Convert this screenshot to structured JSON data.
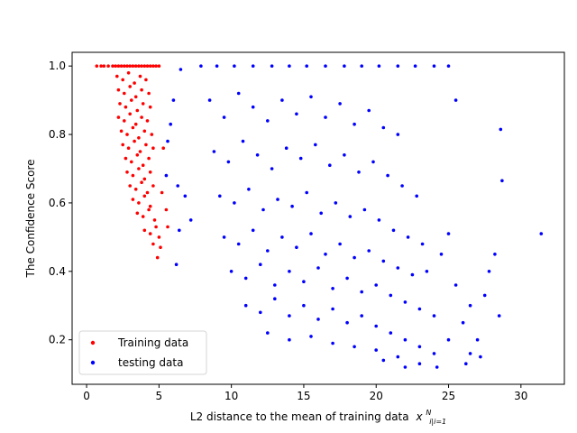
{
  "chart_data": {
    "type": "scatter",
    "title": "",
    "xlabel": "L2 distance to the mean of training data",
    "xlabel_math": "x",
    "xlabel_sub": "i|i=1",
    "xlabel_sup": "N",
    "ylabel": "The Confidence Score",
    "xlim": [
      -1,
      33
    ],
    "ylim": [
      0.07,
      1.04
    ],
    "xticks": [
      0,
      5,
      10,
      15,
      20,
      25,
      30
    ],
    "yticks": [
      0.2,
      0.4,
      0.6,
      0.8,
      1.0
    ],
    "ytick_labels": [
      "0.2",
      "0.4",
      "0.6",
      "0.8",
      "1.0"
    ],
    "grid": false,
    "legend_position": "lower-left",
    "series": [
      {
        "name": "Training data",
        "color": "#ff0000",
        "points": [
          [
            0.7,
            1.0
          ],
          [
            1.0,
            1.0
          ],
          [
            1.2,
            1.0
          ],
          [
            1.5,
            1.0
          ],
          [
            1.8,
            1.0
          ],
          [
            2.0,
            1.0
          ],
          [
            2.2,
            1.0
          ],
          [
            2.4,
            1.0
          ],
          [
            2.6,
            1.0
          ],
          [
            2.8,
            1.0
          ],
          [
            3.0,
            1.0
          ],
          [
            3.2,
            1.0
          ],
          [
            3.4,
            1.0
          ],
          [
            3.6,
            1.0
          ],
          [
            3.8,
            1.0
          ],
          [
            4.0,
            1.0
          ],
          [
            4.2,
            1.0
          ],
          [
            4.4,
            1.0
          ],
          [
            4.6,
            1.0
          ],
          [
            4.8,
            1.0
          ],
          [
            5.0,
            1.0
          ],
          [
            2.1,
            0.97
          ],
          [
            2.5,
            0.96
          ],
          [
            2.9,
            0.98
          ],
          [
            3.3,
            0.95
          ],
          [
            3.7,
            0.97
          ],
          [
            4.1,
            0.96
          ],
          [
            2.2,
            0.93
          ],
          [
            2.6,
            0.92
          ],
          [
            3.0,
            0.94
          ],
          [
            3.4,
            0.91
          ],
          [
            3.8,
            0.93
          ],
          [
            4.3,
            0.92
          ],
          [
            2.3,
            0.89
          ],
          [
            2.7,
            0.88
          ],
          [
            3.1,
            0.9
          ],
          [
            3.5,
            0.87
          ],
          [
            3.9,
            0.89
          ],
          [
            4.4,
            0.88
          ],
          [
            2.2,
            0.85
          ],
          [
            2.6,
            0.84
          ],
          [
            3.0,
            0.86
          ],
          [
            3.4,
            0.83
          ],
          [
            3.8,
            0.85
          ],
          [
            4.2,
            0.84
          ],
          [
            2.4,
            0.81
          ],
          [
            2.8,
            0.8
          ],
          [
            3.2,
            0.82
          ],
          [
            3.6,
            0.79
          ],
          [
            4.0,
            0.81
          ],
          [
            4.5,
            0.8
          ],
          [
            2.5,
            0.77
          ],
          [
            2.9,
            0.76
          ],
          [
            3.3,
            0.78
          ],
          [
            3.7,
            0.75
          ],
          [
            4.1,
            0.77
          ],
          [
            4.6,
            0.76
          ],
          [
            2.7,
            0.73
          ],
          [
            3.1,
            0.72
          ],
          [
            3.5,
            0.74
          ],
          [
            3.9,
            0.71
          ],
          [
            4.3,
            0.73
          ],
          [
            2.8,
            0.69
          ],
          [
            3.2,
            0.68
          ],
          [
            3.6,
            0.7
          ],
          [
            4.0,
            0.67
          ],
          [
            4.4,
            0.69
          ],
          [
            3.0,
            0.65
          ],
          [
            3.4,
            0.64
          ],
          [
            3.8,
            0.66
          ],
          [
            4.2,
            0.63
          ],
          [
            4.6,
            0.65
          ],
          [
            3.2,
            0.61
          ],
          [
            3.6,
            0.6
          ],
          [
            4.0,
            0.62
          ],
          [
            4.4,
            0.59
          ],
          [
            3.5,
            0.57
          ],
          [
            3.9,
            0.56
          ],
          [
            4.3,
            0.58
          ],
          [
            4.7,
            0.55
          ],
          [
            4.0,
            0.52
          ],
          [
            4.4,
            0.51
          ],
          [
            4.8,
            0.53
          ],
          [
            4.6,
            0.48
          ],
          [
            5.0,
            0.5
          ],
          [
            4.9,
            0.44
          ],
          [
            5.1,
            0.47
          ],
          [
            5.3,
            0.76
          ],
          [
            5.2,
            0.63
          ],
          [
            5.5,
            0.58
          ],
          [
            5.6,
            0.53
          ]
        ]
      },
      {
        "name": "testing data",
        "color": "#0000ff",
        "points": [
          [
            7.9,
            1.0
          ],
          [
            9.0,
            1.0
          ],
          [
            10.2,
            1.0
          ],
          [
            11.5,
            1.0
          ],
          [
            12.8,
            1.0
          ],
          [
            14.0,
            1.0
          ],
          [
            15.2,
            1.0
          ],
          [
            16.5,
            1.0
          ],
          [
            17.8,
            1.0
          ],
          [
            19.0,
            1.0
          ],
          [
            20.2,
            1.0
          ],
          [
            21.5,
            1.0
          ],
          [
            22.7,
            1.0
          ],
          [
            24.0,
            1.0
          ],
          [
            25.0,
            1.0
          ],
          [
            6.5,
            0.99
          ],
          [
            6.0,
            0.9
          ],
          [
            5.8,
            0.83
          ],
          [
            5.6,
            0.78
          ],
          [
            5.5,
            0.68
          ],
          [
            6.3,
            0.65
          ],
          [
            6.8,
            0.62
          ],
          [
            6.4,
            0.52
          ],
          [
            7.2,
            0.55
          ],
          [
            6.2,
            0.42
          ],
          [
            8.5,
            0.9
          ],
          [
            9.5,
            0.85
          ],
          [
            10.5,
            0.92
          ],
          [
            11.5,
            0.88
          ],
          [
            12.5,
            0.84
          ],
          [
            13.5,
            0.9
          ],
          [
            14.5,
            0.86
          ],
          [
            15.5,
            0.91
          ],
          [
            16.5,
            0.85
          ],
          [
            17.5,
            0.89
          ],
          [
            18.5,
            0.83
          ],
          [
            19.5,
            0.87
          ],
          [
            20.5,
            0.82
          ],
          [
            21.5,
            0.8
          ],
          [
            8.8,
            0.75
          ],
          [
            9.8,
            0.72
          ],
          [
            10.8,
            0.78
          ],
          [
            11.8,
            0.74
          ],
          [
            12.8,
            0.7
          ],
          [
            13.8,
            0.76
          ],
          [
            14.8,
            0.73
          ],
          [
            15.8,
            0.77
          ],
          [
            16.8,
            0.71
          ],
          [
            17.8,
            0.74
          ],
          [
            18.8,
            0.69
          ],
          [
            19.8,
            0.72
          ],
          [
            20.8,
            0.68
          ],
          [
            21.8,
            0.65
          ],
          [
            22.8,
            0.62
          ],
          [
            9.2,
            0.62
          ],
          [
            10.2,
            0.6
          ],
          [
            11.2,
            0.64
          ],
          [
            12.2,
            0.58
          ],
          [
            13.2,
            0.61
          ],
          [
            14.2,
            0.59
          ],
          [
            15.2,
            0.63
          ],
          [
            16.2,
            0.57
          ],
          [
            17.2,
            0.6
          ],
          [
            18.2,
            0.56
          ],
          [
            19.2,
            0.58
          ],
          [
            20.2,
            0.55
          ],
          [
            21.2,
            0.52
          ],
          [
            22.2,
            0.5
          ],
          [
            23.2,
            0.48
          ],
          [
            9.5,
            0.5
          ],
          [
            10.5,
            0.48
          ],
          [
            11.5,
            0.52
          ],
          [
            12.5,
            0.46
          ],
          [
            13.5,
            0.5
          ],
          [
            14.5,
            0.47
          ],
          [
            15.5,
            0.51
          ],
          [
            16.5,
            0.45
          ],
          [
            17.5,
            0.48
          ],
          [
            18.5,
            0.44
          ],
          [
            19.5,
            0.46
          ],
          [
            20.5,
            0.43
          ],
          [
            21.5,
            0.41
          ],
          [
            22.5,
            0.39
          ],
          [
            10.0,
            0.4
          ],
          [
            11.0,
            0.38
          ],
          [
            12.0,
            0.42
          ],
          [
            13.0,
            0.36
          ],
          [
            14.0,
            0.4
          ],
          [
            15.0,
            0.37
          ],
          [
            16.0,
            0.41
          ],
          [
            17.0,
            0.35
          ],
          [
            18.0,
            0.38
          ],
          [
            19.0,
            0.34
          ],
          [
            20.0,
            0.36
          ],
          [
            21.0,
            0.33
          ],
          [
            22.0,
            0.31
          ],
          [
            23.0,
            0.29
          ],
          [
            24.0,
            0.27
          ],
          [
            11.0,
            0.3
          ],
          [
            12.0,
            0.28
          ],
          [
            13.0,
            0.32
          ],
          [
            14.0,
            0.27
          ],
          [
            15.0,
            0.3
          ],
          [
            16.0,
            0.26
          ],
          [
            17.0,
            0.29
          ],
          [
            18.0,
            0.25
          ],
          [
            19.0,
            0.27
          ],
          [
            20.0,
            0.24
          ],
          [
            21.0,
            0.22
          ],
          [
            22.0,
            0.2
          ],
          [
            23.0,
            0.18
          ],
          [
            24.0,
            0.16
          ],
          [
            25.0,
            0.2
          ],
          [
            12.5,
            0.22
          ],
          [
            14.0,
            0.2
          ],
          [
            15.5,
            0.21
          ],
          [
            17.0,
            0.19
          ],
          [
            18.5,
            0.18
          ],
          [
            20.0,
            0.17
          ],
          [
            21.5,
            0.15
          ],
          [
            23.0,
            0.13
          ],
          [
            24.2,
            0.12
          ],
          [
            22.0,
            0.12
          ],
          [
            20.5,
            0.14
          ],
          [
            23.5,
            0.4
          ],
          [
            24.5,
            0.45
          ],
          [
            25.5,
            0.36
          ],
          [
            26.5,
            0.3
          ],
          [
            26.0,
            0.25
          ],
          [
            27.0,
            0.2
          ],
          [
            27.8,
            0.4
          ],
          [
            28.2,
            0.45
          ],
          [
            28.5,
            0.27
          ],
          [
            26.2,
            0.13
          ],
          [
            26.5,
            0.16
          ],
          [
            27.5,
            0.33
          ],
          [
            28.6,
            0.815
          ],
          [
            28.7,
            0.665
          ],
          [
            31.4,
            0.51
          ],
          [
            25.5,
            0.9
          ],
          [
            25.0,
            0.51
          ],
          [
            27.2,
            0.15
          ]
        ]
      }
    ]
  }
}
